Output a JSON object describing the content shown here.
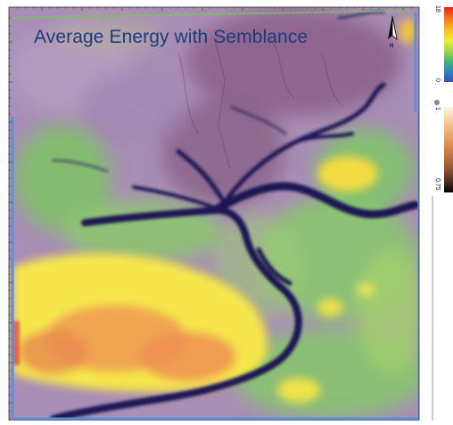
{
  "title": "Average Energy with Semblance",
  "north_arrow": {
    "icon": "north-arrow-icon",
    "label": "N"
  },
  "colorbars": [
    {
      "name": "average-energy-colorbar",
      "max_label": "18",
      "min_label": "0",
      "colors": [
        "#e8201a",
        "#f47a1e",
        "#f7c61c",
        "#eef033",
        "#a7d84a",
        "#47b86a",
        "#2e86c1",
        "#3a4fb0"
      ]
    },
    {
      "name": "semblance-colorbar",
      "max_label": "1",
      "min_label": "0.75",
      "colors": [
        "#fff5e6",
        "#f6c48c",
        "#e08b4a",
        "#9d5a37",
        "#4a2a1e",
        "#000000"
      ]
    }
  ],
  "colors": {
    "map_background": "#a98eb5",
    "frame_blue": "#5b8fd6",
    "frame_green": "#78c85a",
    "channel_dark": "#1a1752",
    "hot_yellow": "#f6e64b",
    "hot_orange": "#ef9a52",
    "title_blue": "#1d3c7a"
  }
}
